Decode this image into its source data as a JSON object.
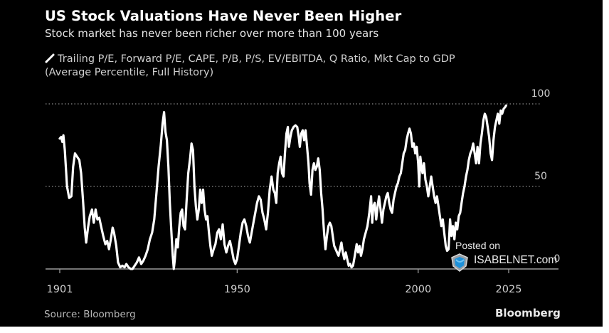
{
  "title": "US Stock Valuations Have Never Been Higher",
  "subtitle": "Stock market has never been richer over more than 100 years",
  "legend": {
    "line1": "Trailing P/E, Forward P/E, CAPE, P/B, P/S, EV/EBITDA, Q Ratio, Mkt Cap to GDP",
    "line2": "(Average Percentile, Full History)",
    "icon": "line-swatch-icon"
  },
  "source": "Source: Bloomberg",
  "brand": "Bloomberg",
  "watermark": {
    "posted": "Posted on",
    "site": "ISABELNET.com",
    "icon": "shield-logo-icon"
  },
  "colors": {
    "background": "#000000",
    "line": "#ffffff",
    "grid": "#8a8a8a",
    "axis": "#9a9a9a",
    "tick_label": "#d0d0d0"
  },
  "chart_data": {
    "type": "line",
    "title": "US Stock Valuations Have Never Been Higher",
    "subtitle": "Stock market has never been richer over more than 100 years",
    "xlabel": "",
    "ylabel": "Average Percentile, Full History",
    "xlim": [
      1901,
      2025
    ],
    "ylim": [
      0,
      100
    ],
    "x_ticks": [
      1901,
      1950,
      2000,
      2025
    ],
    "x_tick_labels": [
      "1901",
      "1950",
      "2000",
      "2025"
    ],
    "y_ticks": [
      0,
      50,
      100
    ],
    "y_tick_labels": [
      "0",
      "50",
      "100"
    ],
    "y_axis_side": "right",
    "grid": "horizontal dotted at 50 and 100",
    "legend_position": "top-left",
    "series": [
      {
        "name": "Trailing P/E, Forward P/E, CAPE, P/B, P/S, EV/EBITDA, Q Ratio, Mkt Cap to GDP (Average Percentile, Full History)",
        "points": [
          [
            1901.0,
            79
          ],
          [
            1901.4,
            80
          ],
          [
            1901.7,
            77
          ],
          [
            1902.0,
            81
          ],
          [
            1902.4,
            72
          ],
          [
            1903.0,
            50
          ],
          [
            1903.6,
            43
          ],
          [
            1904.2,
            44
          ],
          [
            1904.7,
            62
          ],
          [
            1905.2,
            70
          ],
          [
            1905.8,
            68
          ],
          [
            1906.4,
            66
          ],
          [
            1906.9,
            58
          ],
          [
            1907.4,
            42
          ],
          [
            1907.9,
            25
          ],
          [
            1908.3,
            16
          ],
          [
            1908.8,
            25
          ],
          [
            1909.3,
            32
          ],
          [
            1909.9,
            36
          ],
          [
            1910.4,
            28
          ],
          [
            1910.9,
            36
          ],
          [
            1911.4,
            30
          ],
          [
            1911.9,
            31
          ],
          [
            1912.4,
            26
          ],
          [
            1913.0,
            20
          ],
          [
            1913.6,
            15
          ],
          [
            1914.1,
            17
          ],
          [
            1914.6,
            12
          ],
          [
            1915.1,
            18
          ],
          [
            1915.6,
            25
          ],
          [
            1916.0,
            22
          ],
          [
            1916.6,
            14
          ],
          [
            1917.1,
            4
          ],
          [
            1917.7,
            1
          ],
          [
            1918.3,
            2
          ],
          [
            1918.9,
            1
          ],
          [
            1919.4,
            3
          ],
          [
            1920.0,
            1
          ],
          [
            1920.6,
            0
          ],
          [
            1921.1,
            0
          ],
          [
            1921.7,
            2
          ],
          [
            1922.3,
            4
          ],
          [
            1922.9,
            7
          ],
          [
            1923.5,
            3
          ],
          [
            1924.1,
            5
          ],
          [
            1924.7,
            8
          ],
          [
            1925.3,
            12
          ],
          [
            1925.9,
            18
          ],
          [
            1926.5,
            22
          ],
          [
            1927.1,
            30
          ],
          [
            1927.7,
            46
          ],
          [
            1928.3,
            62
          ],
          [
            1928.9,
            75
          ],
          [
            1929.4,
            88
          ],
          [
            1929.8,
            95
          ],
          [
            1930.2,
            83
          ],
          [
            1930.6,
            78
          ],
          [
            1931.0,
            62
          ],
          [
            1931.4,
            40
          ],
          [
            1931.9,
            20
          ],
          [
            1932.2,
            8
          ],
          [
            1932.5,
            0
          ],
          [
            1932.8,
            6
          ],
          [
            1933.2,
            18
          ],
          [
            1933.6,
            13
          ],
          [
            1934.0,
            25
          ],
          [
            1934.4,
            34
          ],
          [
            1934.8,
            36
          ],
          [
            1935.2,
            26
          ],
          [
            1935.6,
            24
          ],
          [
            1936.0,
            40
          ],
          [
            1936.5,
            58
          ],
          [
            1937.0,
            67
          ],
          [
            1937.4,
            76
          ],
          [
            1937.8,
            72
          ],
          [
            1938.2,
            50
          ],
          [
            1938.6,
            38
          ],
          [
            1939.0,
            30
          ],
          [
            1939.4,
            36
          ],
          [
            1939.8,
            48
          ],
          [
            1940.2,
            40
          ],
          [
            1940.6,
            48
          ],
          [
            1941.0,
            36
          ],
          [
            1941.4,
            30
          ],
          [
            1941.8,
            32
          ],
          [
            1942.2,
            22
          ],
          [
            1942.6,
            14
          ],
          [
            1943.0,
            8
          ],
          [
            1943.5,
            12
          ],
          [
            1944.0,
            15
          ],
          [
            1944.5,
            22
          ],
          [
            1945.0,
            24
          ],
          [
            1945.5,
            18
          ],
          [
            1946.0,
            27
          ],
          [
            1946.5,
            15
          ],
          [
            1947.0,
            10
          ],
          [
            1947.5,
            14
          ],
          [
            1948.0,
            17
          ],
          [
            1948.5,
            12
          ],
          [
            1949.0,
            6
          ],
          [
            1949.5,
            3
          ],
          [
            1950.0,
            6
          ],
          [
            1950.5,
            14
          ],
          [
            1951.0,
            22
          ],
          [
            1951.5,
            28
          ],
          [
            1952.0,
            30
          ],
          [
            1952.5,
            26
          ],
          [
            1953.0,
            20
          ],
          [
            1953.5,
            16
          ],
          [
            1954.0,
            22
          ],
          [
            1954.5,
            28
          ],
          [
            1955.0,
            34
          ],
          [
            1955.5,
            40
          ],
          [
            1956.0,
            44
          ],
          [
            1956.5,
            42
          ],
          [
            1957.0,
            34
          ],
          [
            1957.5,
            30
          ],
          [
            1958.0,
            24
          ],
          [
            1958.5,
            34
          ],
          [
            1959.0,
            48
          ],
          [
            1959.5,
            56
          ],
          [
            1960.0,
            48
          ],
          [
            1960.4,
            46
          ],
          [
            1960.8,
            40
          ],
          [
            1961.2,
            58
          ],
          [
            1961.6,
            64
          ],
          [
            1962.0,
            68
          ],
          [
            1962.4,
            58
          ],
          [
            1962.8,
            56
          ],
          [
            1963.2,
            70
          ],
          [
            1963.6,
            82
          ],
          [
            1964.0,
            86
          ],
          [
            1964.3,
            74
          ],
          [
            1964.7,
            80
          ],
          [
            1965.1,
            84
          ],
          [
            1965.6,
            86
          ],
          [
            1966.1,
            87
          ],
          [
            1966.6,
            86
          ],
          [
            1967.0,
            80
          ],
          [
            1967.3,
            74
          ],
          [
            1967.7,
            82
          ],
          [
            1968.1,
            84
          ],
          [
            1968.5,
            78
          ],
          [
            1968.9,
            84
          ],
          [
            1969.3,
            74
          ],
          [
            1969.7,
            64
          ],
          [
            1970.0,
            52
          ],
          [
            1970.4,
            45
          ],
          [
            1970.8,
            60
          ],
          [
            1971.2,
            64
          ],
          [
            1971.6,
            60
          ],
          [
            1972.0,
            62
          ],
          [
            1972.4,
            67
          ],
          [
            1972.8,
            60
          ],
          [
            1973.2,
            46
          ],
          [
            1973.6,
            36
          ],
          [
            1974.0,
            22
          ],
          [
            1974.4,
            12
          ],
          [
            1974.8,
            20
          ],
          [
            1975.2,
            26
          ],
          [
            1975.6,
            28
          ],
          [
            1976.0,
            26
          ],
          [
            1976.4,
            20
          ],
          [
            1976.8,
            14
          ],
          [
            1977.2,
            12
          ],
          [
            1977.6,
            10
          ],
          [
            1978.0,
            8
          ],
          [
            1978.4,
            12
          ],
          [
            1978.8,
            16
          ],
          [
            1979.2,
            10
          ],
          [
            1979.6,
            6
          ],
          [
            1980.0,
            10
          ],
          [
            1980.4,
            6
          ],
          [
            1980.8,
            2
          ],
          [
            1981.2,
            3
          ],
          [
            1981.6,
            1
          ],
          [
            1982.0,
            2
          ],
          [
            1982.5,
            8
          ],
          [
            1983.0,
            15
          ],
          [
            1983.4,
            10
          ],
          [
            1983.8,
            14
          ],
          [
            1984.2,
            8
          ],
          [
            1984.6,
            12
          ],
          [
            1985.0,
            18
          ],
          [
            1985.5,
            22
          ],
          [
            1986.0,
            26
          ],
          [
            1986.5,
            34
          ],
          [
            1987.0,
            44
          ],
          [
            1987.3,
            28
          ],
          [
            1987.6,
            38
          ],
          [
            1988.0,
            40
          ],
          [
            1988.4,
            30
          ],
          [
            1988.8,
            38
          ],
          [
            1989.2,
            44
          ],
          [
            1989.6,
            36
          ],
          [
            1990.0,
            28
          ],
          [
            1990.4,
            36
          ],
          [
            1990.8,
            40
          ],
          [
            1991.2,
            44
          ],
          [
            1991.6,
            46
          ],
          [
            1992.0,
            40
          ],
          [
            1992.4,
            36
          ],
          [
            1992.8,
            34
          ],
          [
            1993.2,
            42
          ],
          [
            1993.6,
            46
          ],
          [
            1994.0,
            50
          ],
          [
            1994.4,
            52
          ],
          [
            1994.8,
            56
          ],
          [
            1995.2,
            58
          ],
          [
            1995.6,
            64
          ],
          [
            1996.0,
            70
          ],
          [
            1996.4,
            72
          ],
          [
            1996.8,
            78
          ],
          [
            1997.2,
            82
          ],
          [
            1997.6,
            85
          ],
          [
            1998.0,
            82
          ],
          [
            1998.4,
            74
          ],
          [
            1998.8,
            76
          ],
          [
            1999.2,
            70
          ],
          [
            1999.6,
            74
          ],
          [
            2000.0,
            64
          ],
          [
            2000.3,
            50
          ],
          [
            2000.6,
            68
          ],
          [
            2000.9,
            62
          ],
          [
            2001.2,
            58
          ],
          [
            2001.6,
            64
          ],
          [
            2002.0,
            54
          ],
          [
            2002.4,
            50
          ],
          [
            2002.8,
            44
          ],
          [
            2003.2,
            50
          ],
          [
            2003.6,
            56
          ],
          [
            2004.0,
            50
          ],
          [
            2004.4,
            44
          ],
          [
            2004.8,
            40
          ],
          [
            2005.2,
            44
          ],
          [
            2005.6,
            38
          ],
          [
            2006.0,
            32
          ],
          [
            2006.4,
            26
          ],
          [
            2006.8,
            30
          ],
          [
            2007.2,
            22
          ],
          [
            2007.6,
            14
          ],
          [
            2008.0,
            11
          ],
          [
            2008.4,
            12
          ],
          [
            2008.8,
            30
          ],
          [
            2009.2,
            20
          ],
          [
            2009.6,
            26
          ],
          [
            2010.0,
            18
          ],
          [
            2010.4,
            28
          ],
          [
            2010.8,
            24
          ],
          [
            2011.2,
            32
          ],
          [
            2011.6,
            34
          ],
          [
            2012.0,
            40
          ],
          [
            2012.4,
            46
          ],
          [
            2012.8,
            50
          ],
          [
            2013.2,
            56
          ],
          [
            2013.6,
            60
          ],
          [
            2014.0,
            66
          ],
          [
            2014.4,
            70
          ],
          [
            2014.8,
            72
          ],
          [
            2015.2,
            76
          ],
          [
            2015.6,
            70
          ],
          [
            2016.0,
            64
          ],
          [
            2016.4,
            74
          ],
          [
            2016.8,
            64
          ],
          [
            2017.2,
            76
          ],
          [
            2017.6,
            82
          ],
          [
            2018.0,
            90
          ],
          [
            2018.4,
            94
          ],
          [
            2018.8,
            92
          ],
          [
            2019.2,
            86
          ],
          [
            2019.6,
            80
          ],
          [
            2020.0,
            70
          ],
          [
            2020.4,
            66
          ],
          [
            2020.8,
            78
          ],
          [
            2021.2,
            86
          ],
          [
            2021.6,
            90
          ],
          [
            2022.0,
            94
          ],
          [
            2022.4,
            88
          ],
          [
            2022.8,
            96
          ],
          [
            2023.2,
            94
          ],
          [
            2023.6,
            97
          ],
          [
            2024.0,
            98
          ],
          [
            2024.3,
            99
          ]
        ]
      }
    ]
  }
}
